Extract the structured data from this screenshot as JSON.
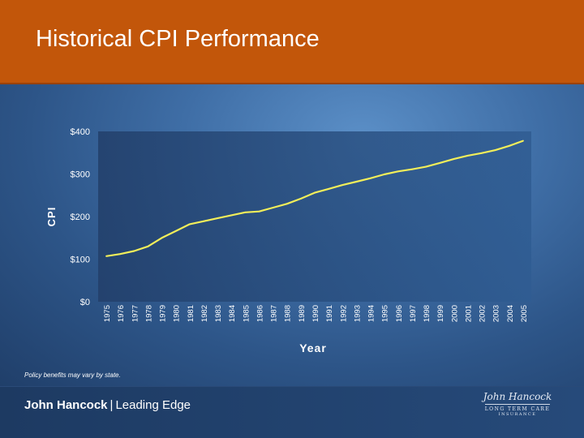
{
  "slide": {
    "title": "Historical CPI Performance",
    "footnote": "Policy benefits may vary by state.",
    "footer": {
      "brand_name": "John Hancock",
      "separator": "|",
      "tagline": "Leading Edge"
    },
    "logo": {
      "script": "John Hancock",
      "line1": "LONG TERM CARE",
      "line2": "INSURANCE"
    }
  },
  "colors": {
    "header": "#c2560a",
    "line": "#f2ee5a",
    "plot_area": "#284a7a"
  },
  "chart_data": {
    "type": "line",
    "title": "",
    "xlabel": "Year",
    "ylabel": "CPI",
    "ylim": [
      0,
      400
    ],
    "yticks": [
      0,
      100,
      200,
      300,
      400
    ],
    "ytick_labels": [
      "$0",
      "$100",
      "$200",
      "$300",
      "$400"
    ],
    "categories": [
      "1975",
      "1976",
      "1977",
      "1978",
      "1979",
      "1980",
      "1981",
      "1982",
      "1983",
      "1984",
      "1985",
      "1986",
      "1987",
      "1988",
      "1989",
      "1990",
      "1991",
      "1992",
      "1993",
      "1994",
      "1995",
      "1996",
      "1997",
      "1998",
      "1999",
      "2000",
      "2001",
      "2002",
      "2003",
      "2004",
      "2005"
    ],
    "series": [
      {
        "name": "CPI",
        "values": [
          107,
          112,
          119,
          130,
          150,
          166,
          182,
          189,
          196,
          203,
          210,
          212,
          221,
          230,
          242,
          256,
          265,
          274,
          282,
          290,
          299,
          306,
          311,
          317,
          326,
          335,
          343,
          349,
          356,
          366,
          378
        ]
      }
    ]
  }
}
